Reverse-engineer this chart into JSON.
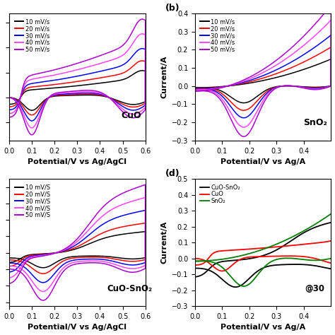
{
  "panel_a": {
    "label": "CuO",
    "scan_rates": [
      "10 mV/s",
      "20 mV/s",
      "30 mV/s",
      "40 mV/s",
      "50 mV/s"
    ],
    "colors": [
      "#000000",
      "#ff0000",
      "#0000ff",
      "#ff44ff",
      "#aa00cc"
    ],
    "xlim": [
      0.0,
      0.6
    ],
    "xticks": [
      0.0,
      0.1,
      0.2,
      0.3,
      0.4,
      0.5,
      0.6
    ],
    "xlabel": "Potential/V vs Ag/AgCl",
    "has_ylabel": false
  },
  "panel_b": {
    "label": "SnO₂",
    "panel_letter": "(b)",
    "scan_rates": [
      "10 mV/s",
      "20 mV/s",
      "30 mV/s",
      "40 mV/s",
      "50 mV/s"
    ],
    "colors": [
      "#000000",
      "#ff0000",
      "#0000ff",
      "#ff44ff",
      "#aa00cc"
    ],
    "xlim": [
      0.0,
      0.5
    ],
    "ylim": [
      -0.3,
      0.4
    ],
    "yticks": [
      -0.3,
      -0.2,
      -0.1,
      0.0,
      0.1,
      0.2,
      0.3,
      0.4
    ],
    "xticks": [
      0.0,
      0.1,
      0.2,
      0.3,
      0.4
    ],
    "xlabel": "Potential/V vs Ag/A",
    "ylabel": "Current/A"
  },
  "panel_c": {
    "label": "CuO-SnO₂",
    "scan_rates": [
      "10 mV/S",
      "20 mV/S",
      "30 mV/S",
      "40 mV/S",
      "50 mV/S"
    ],
    "colors": [
      "#000000",
      "#ff0000",
      "#0000ff",
      "#ff44ff",
      "#aa00cc"
    ],
    "xlim": [
      0.0,
      0.6
    ],
    "xticks": [
      0.0,
      0.1,
      0.2,
      0.3,
      0.4,
      0.5,
      0.6
    ],
    "xlabel": "Potential/V vs Ag/AgCl",
    "has_ylabel": false
  },
  "panel_d": {
    "label": "@30",
    "panel_letter": "(d)",
    "legend_entries": [
      "CuO-SnO₂",
      "CuO",
      "SnO₂"
    ],
    "colors": [
      "#000000",
      "#ff0000",
      "#008000"
    ],
    "xlim": [
      0.0,
      0.5
    ],
    "ylim": [
      -0.3,
      0.5
    ],
    "yticks": [
      -0.3,
      -0.2,
      -0.1,
      0.0,
      0.1,
      0.2,
      0.3,
      0.4,
      0.5
    ],
    "xticks": [
      0.0,
      0.1,
      0.2,
      0.3,
      0.4
    ],
    "xlabel": "Potential/V vs Ag/A",
    "ylabel": "Current/A"
  },
  "background_color": "#ffffff",
  "tick_label_size": 7,
  "axis_label_size": 8,
  "legend_fontsize": 6,
  "label_fontsize": 9
}
